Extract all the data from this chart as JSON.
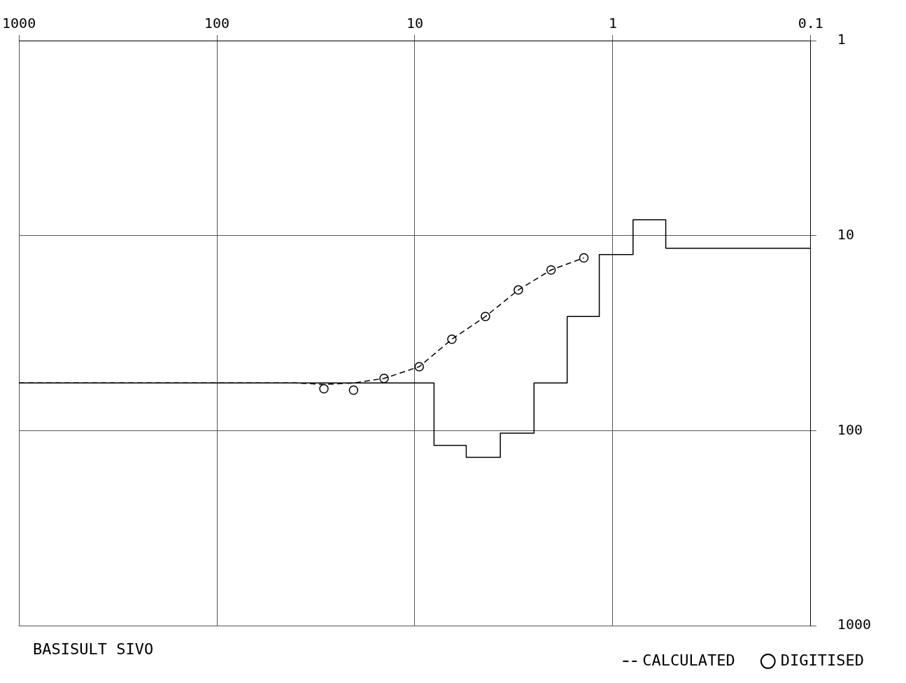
{
  "chart_data": {
    "type": "line",
    "log": "xy",
    "xlim": [
      1000,
      0.1
    ],
    "xticks": [
      1000,
      100,
      10,
      1,
      0.1
    ],
    "ylim": [
      1000,
      1
    ],
    "yticks": [
      1,
      10,
      100,
      1000
    ],
    "grid": true,
    "legend": "bottom",
    "annotations": [
      "BASISULT SIVO"
    ],
    "series": [
      {
        "color": "#000000",
        "x": [
          1000,
          8,
          8,
          5.5,
          5.5,
          3.7,
          3.7,
          2.5,
          2.5,
          1.7,
          1.7,
          1.17,
          1.17,
          0.79,
          0.79,
          0.54,
          0.54,
          0.1
        ],
        "values": [
          57,
          57,
          119,
          119,
          137,
          137,
          103,
          103,
          57,
          57,
          26,
          26,
          12.5,
          12.5,
          8.3,
          8.3,
          11.6,
          11.6
        ],
        "marker": "none"
      },
      {
        "name": "CALCULATED",
        "type": "line",
        "color": "#000000",
        "line_style": "dashed",
        "marker": "none",
        "x": [
          1000,
          40,
          28.8,
          20.4,
          14.3,
          9.5,
          6.5,
          4.4,
          3.0,
          2.05,
          1.4
        ],
        "values": [
          57,
          57,
          58,
          57,
          54,
          47,
          34,
          26,
          19,
          15,
          13
        ]
      },
      {
        "name": "DIGITISED",
        "type": "scatter",
        "color": "#000000",
        "marker": "circle",
        "x": [
          28.8,
          20.4,
          14.3,
          9.5,
          6.5,
          4.4,
          3.0,
          2.05,
          1.4
        ],
        "values": [
          61,
          62,
          54,
          47,
          34,
          26,
          19,
          15,
          13
        ]
      }
    ]
  }
}
